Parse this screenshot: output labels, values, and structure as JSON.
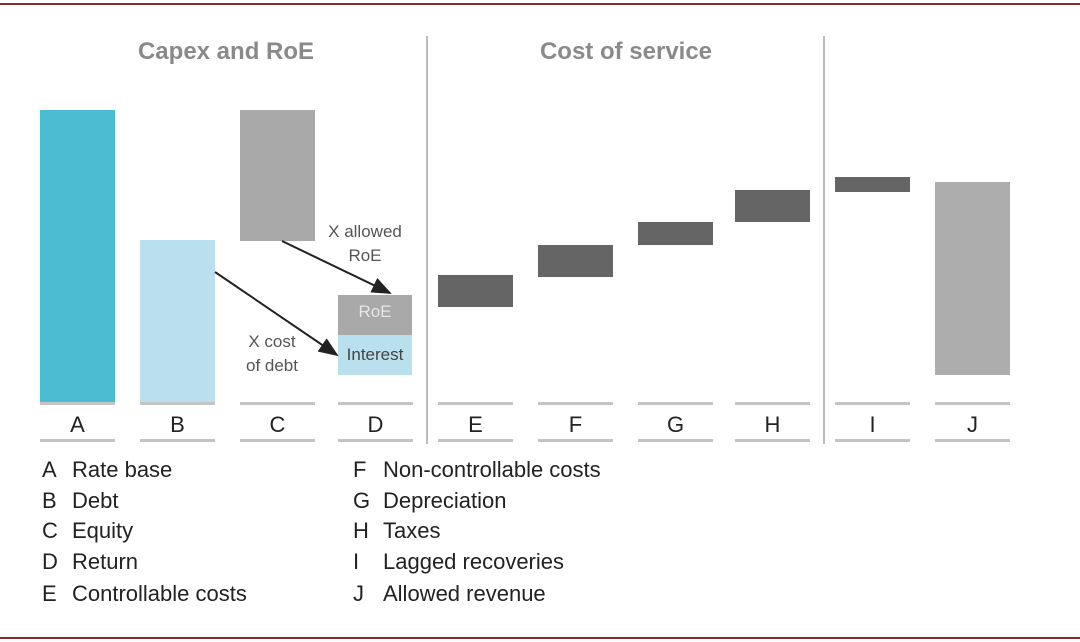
{
  "frame": {
    "border_color": "#8a2b2b"
  },
  "sections": {
    "capex_title": "Capex and RoE",
    "cost_title": "Cost of service"
  },
  "colors": {
    "rate_base": "#4bbdd2",
    "debt": "#b9e0ec",
    "equity": "#a9a9a9",
    "roe_segment": "#a9a9a9",
    "interest_segment": "#b9e0ec",
    "cost_bar": "#656565",
    "allowed_revenue": "#adadad",
    "arrow": "#222222"
  },
  "categories": [
    "A",
    "B",
    "C",
    "D",
    "E",
    "F",
    "G",
    "H",
    "I",
    "J"
  ],
  "annotations": {
    "allowed_roe": [
      "X allowed",
      "RoE"
    ],
    "cost_of_debt": [
      "X cost",
      "of debt"
    ],
    "roe_label": "RoE",
    "interest_label": "Interest"
  },
  "legend": {
    "left": [
      {
        "key": "A",
        "label": "Rate base"
      },
      {
        "key": "B",
        "label": "Debt"
      },
      {
        "key": "C",
        "label": "Equity"
      },
      {
        "key": "D",
        "label": "Return"
      },
      {
        "key": "E",
        "label": "Controllable costs"
      }
    ],
    "right": [
      {
        "key": "F",
        "label": "Non-controllable costs"
      },
      {
        "key": "G",
        "label": "Depreciation"
      },
      {
        "key": "H",
        "label": "Taxes"
      },
      {
        "key": "I",
        "label": "Lagged recoveries"
      },
      {
        "key": "J",
        "label": "Allowed revenue"
      }
    ]
  }
}
